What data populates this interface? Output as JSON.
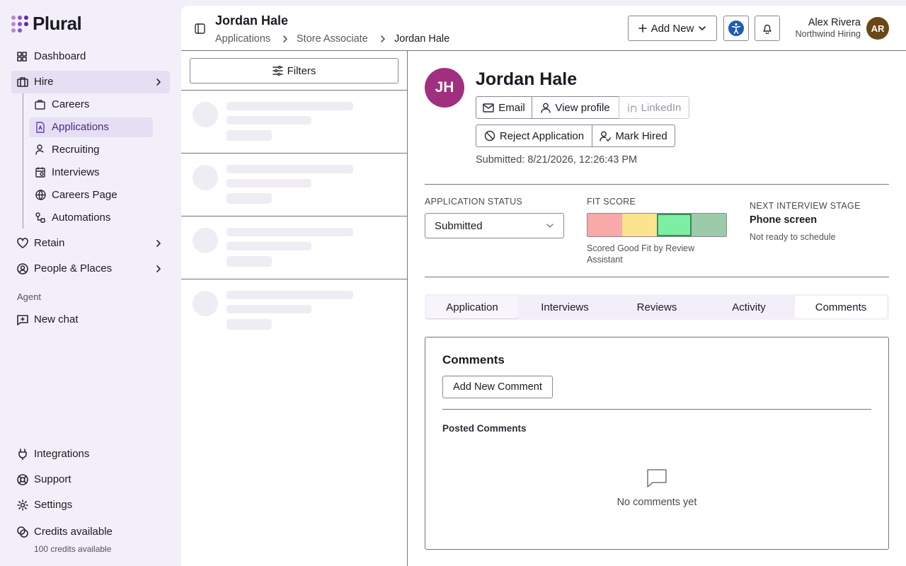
{
  "sidebar": {
    "brand": "Plural",
    "nav": [
      "Dashboard",
      "Hire"
    ],
    "hire_items": [
      "Careers",
      "Applications",
      "Recruiting",
      "Interviews",
      "Careers Page",
      "Automations"
    ],
    "more_nav": [
      "Retain",
      "People & Places"
    ],
    "agent_label": "Agent",
    "agent_item": "New chat",
    "bottom": [
      "Integrations",
      "Support",
      "Settings"
    ],
    "credits": {
      "title": "Credits available",
      "detail": "100 credits available"
    }
  },
  "header": {
    "title": "Jordan Hale",
    "breadcrumbs": [
      "Applications",
      "Store Associate",
      "Jordan Hale"
    ],
    "add_new": "Add New",
    "user": {
      "name": "Alex Rivera",
      "org": "Northwind Hiring",
      "initials": "AR"
    }
  },
  "list": {
    "filters": "Filters"
  },
  "applicant": {
    "initials": "JH",
    "name": "Jordan Hale",
    "actions": [
      "Email",
      "View profile",
      "LinkedIn"
    ],
    "decisions": [
      "Reject Application",
      "Mark Hired"
    ],
    "submitted": "Submitted: 8/21/2026, 12:26:43 PM",
    "status": {
      "label": "APPLICATION STATUS",
      "value": "Submitted"
    },
    "fit": {
      "label": "FIT SCORE",
      "caption": "Scored Good Fit by Review Assistant"
    },
    "next_stage": {
      "label": "NEXT INTERVIEW STAGE",
      "value": "Phone screen",
      "note": "Not ready to schedule"
    },
    "tabs": [
      "Application",
      "Interviews",
      "Reviews",
      "Activity",
      "Comments"
    ],
    "comments": {
      "title": "Comments",
      "add": "Add New Comment",
      "posted": "Posted Comments",
      "empty": "No comments yet"
    }
  }
}
